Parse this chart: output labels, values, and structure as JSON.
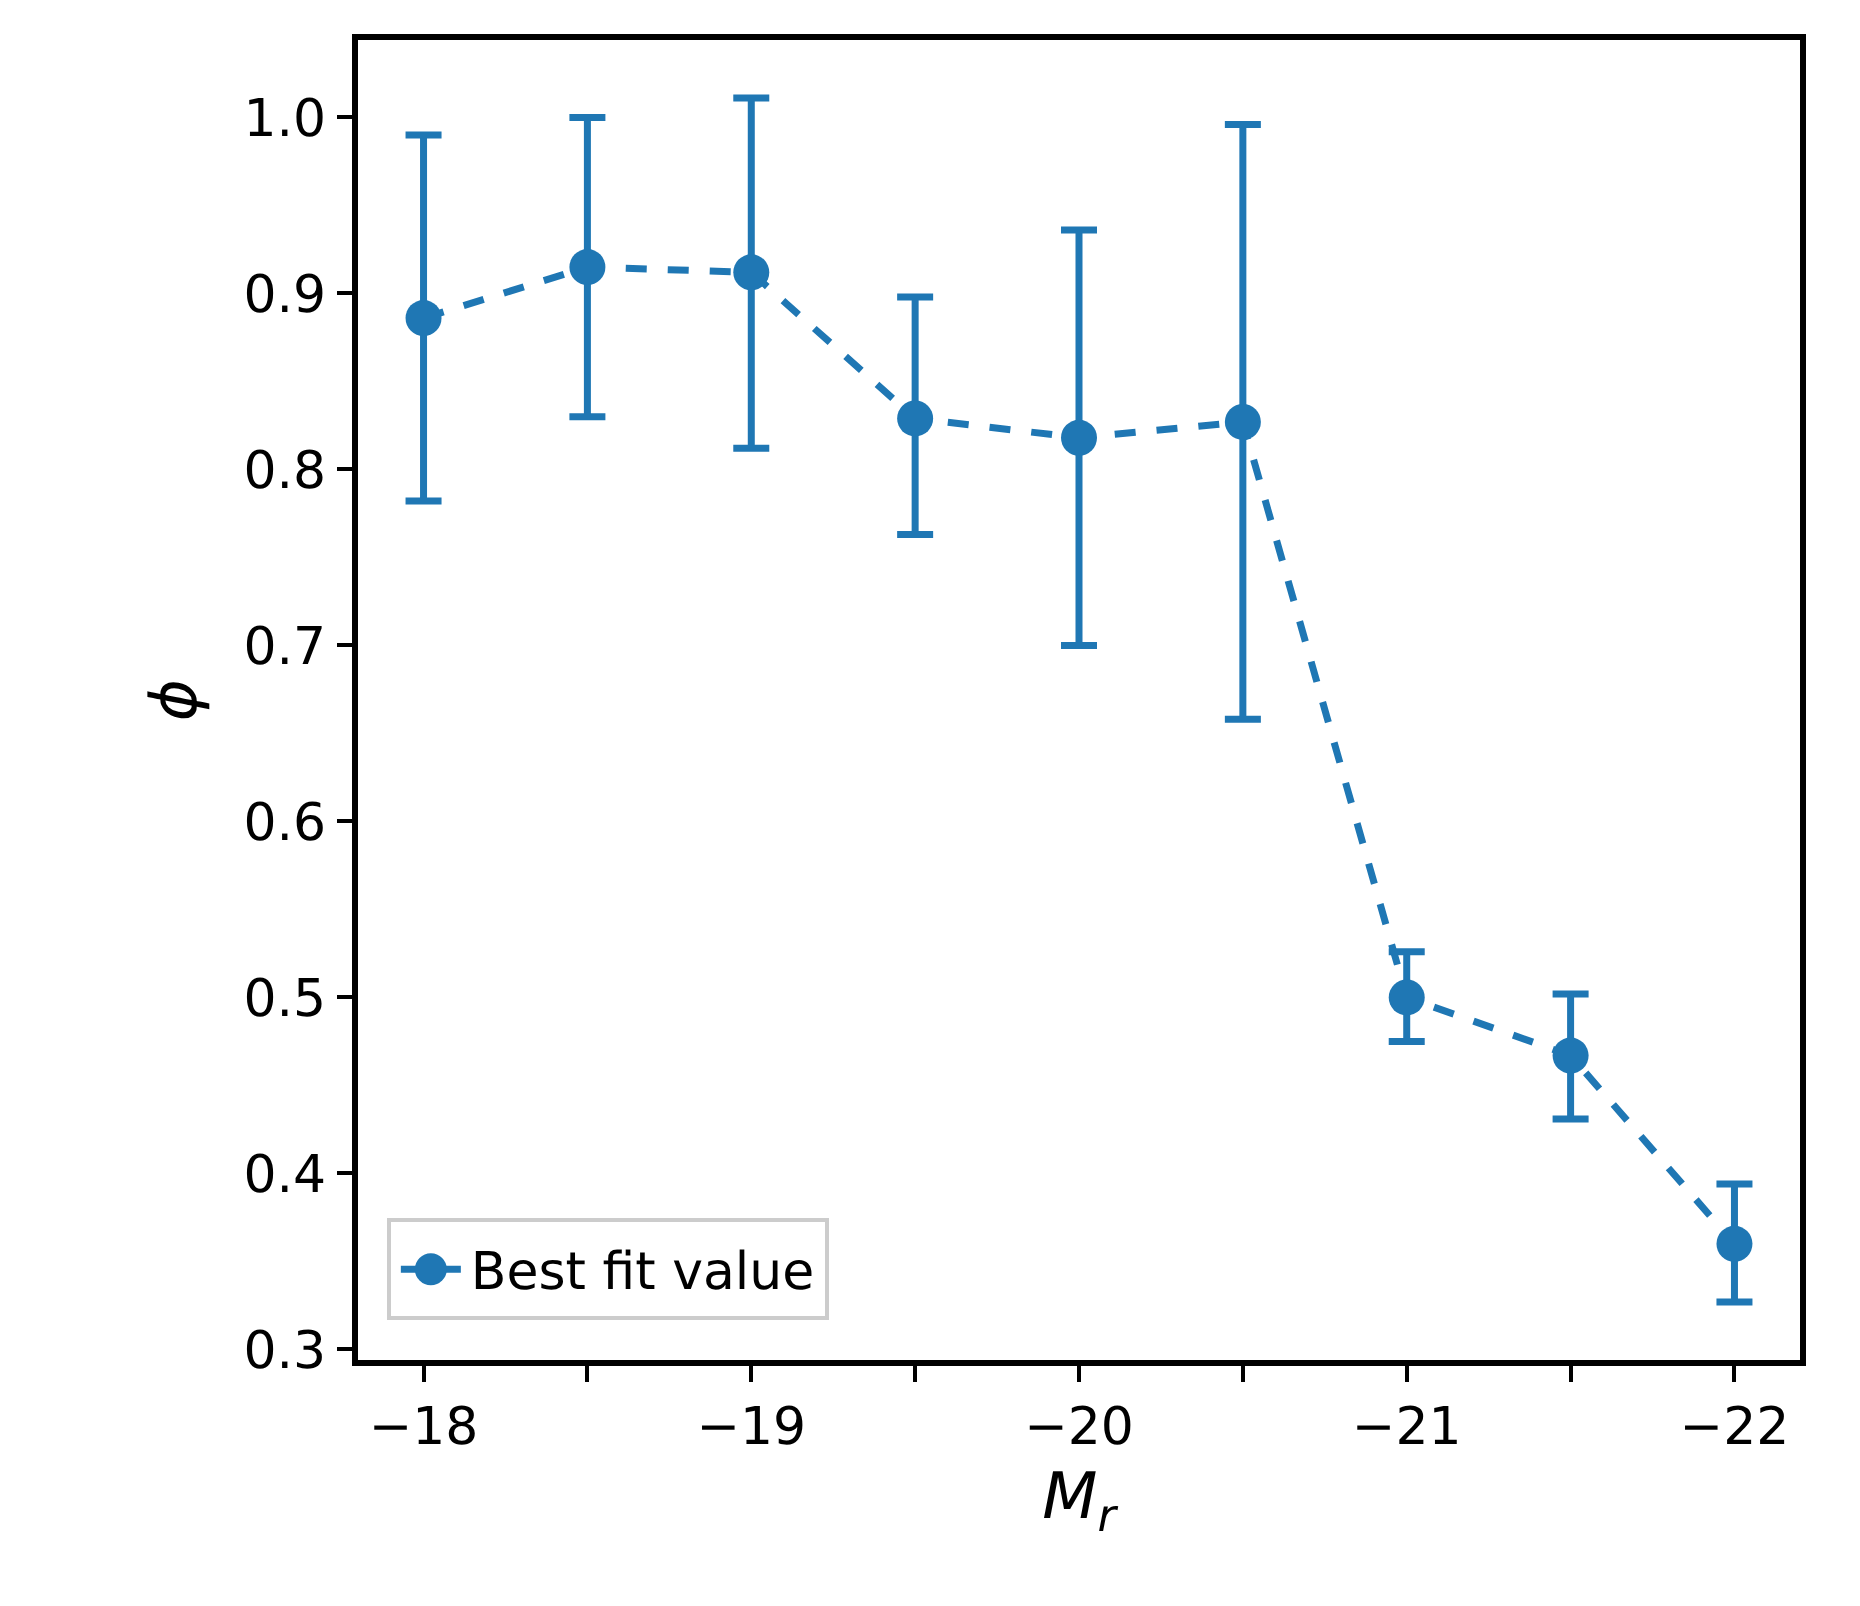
{
  "chart_data": {
    "type": "line",
    "xlabel": "M$_{r}$",
    "ylabel": "ϕ",
    "x": [
      -18,
      -18.5,
      -19,
      -19.5,
      -20,
      -20.5,
      -21,
      -21.5,
      -22
    ],
    "series": [
      {
        "name": "Best fit value",
        "color": "#1f77b4",
        "values": [
          0.886,
          0.915,
          0.912,
          0.829,
          0.818,
          0.827,
          0.5,
          0.467,
          0.36
        ],
        "errors": [
          [
            0.782,
            0.99
          ],
          [
            0.83,
            1.0
          ],
          [
            0.812,
            1.011
          ],
          [
            0.763,
            0.898
          ],
          [
            0.7,
            0.936
          ],
          [
            0.658,
            0.996
          ],
          [
            0.475,
            0.526
          ],
          [
            0.431,
            0.502
          ],
          [
            0.327,
            0.394
          ]
        ]
      }
    ],
    "xlim": [
      -17.8,
      -22.2
    ],
    "ylim": [
      0.294,
      1.044
    ],
    "xticks": [
      -18,
      {
        "value": -18.5,
        "label": null
      },
      -19,
      {
        "value": -19.5,
        "label": null
      },
      -20,
      {
        "value": -20.5,
        "label": null
      },
      -21,
      {
        "value": -21.5,
        "label": null
      },
      -22
    ],
    "yticks": [
      0.3,
      0.4,
      0.5,
      0.6,
      0.7,
      0.8,
      0.9,
      {
        "value": 1.0,
        "label": "1.0"
      }
    ],
    "marker": "circle",
    "line_style": "dashed",
    "legend": "bottom left"
  }
}
